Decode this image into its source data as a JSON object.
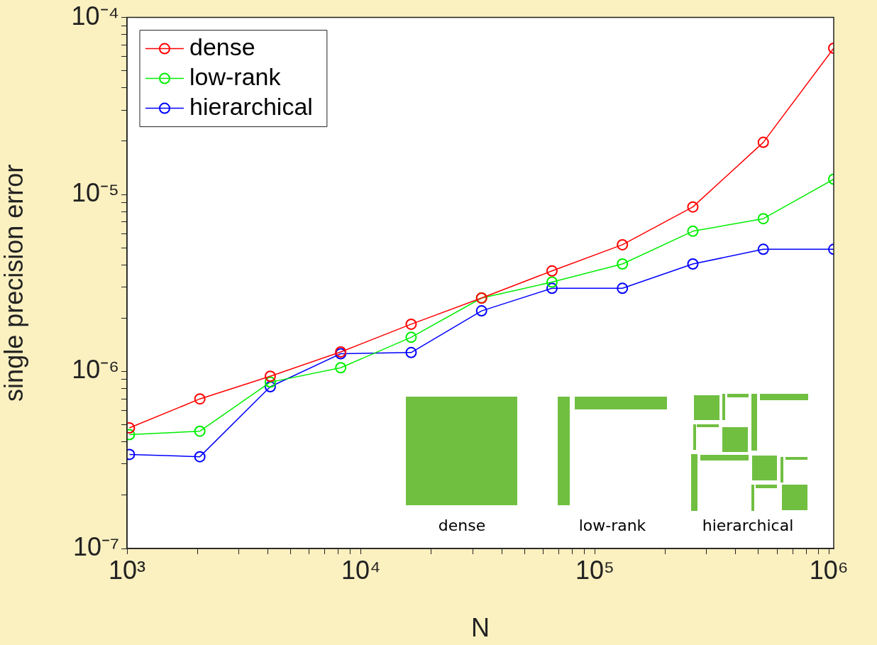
{
  "chart_data": {
    "type": "line",
    "xlabel": "N",
    "ylabel": "single precision error",
    "log": "xy",
    "marker": "circle",
    "legend": "top left",
    "grid": false,
    "x": [
      1024,
      2048,
      4096,
      8192,
      16384,
      32768,
      65536,
      131072,
      262144,
      524288,
      1048576
    ],
    "xlim": [
      1000,
      1048576
    ],
    "xticks": [
      {
        "value": 1000,
        "label": "10³"
      },
      {
        "value": 2000,
        "label": null
      },
      {
        "value": 3000,
        "label": null
      },
      {
        "value": 4000,
        "label": null
      },
      {
        "value": 5000,
        "label": null
      },
      {
        "value": 6000,
        "label": null
      },
      {
        "value": 7000,
        "label": null
      },
      {
        "value": 8000,
        "label": null
      },
      {
        "value": 9000,
        "label": null
      },
      {
        "value": 10000,
        "label": "10⁴"
      },
      {
        "value": 20000,
        "label": null
      },
      {
        "value": 30000,
        "label": null
      },
      {
        "value": 40000,
        "label": null
      },
      {
        "value": 50000,
        "label": null
      },
      {
        "value": 60000,
        "label": null
      },
      {
        "value": 70000,
        "label": null
      },
      {
        "value": 80000,
        "label": null
      },
      {
        "value": 90000,
        "label": null
      },
      {
        "value": 100000,
        "label": "10⁵"
      },
      {
        "value": 200000,
        "label": null
      },
      {
        "value": 300000,
        "label": null
      },
      {
        "value": 400000,
        "label": null
      },
      {
        "value": 500000,
        "label": null
      },
      {
        "value": 600000,
        "label": null
      },
      {
        "value": 700000,
        "label": null
      },
      {
        "value": 800000,
        "label": null
      },
      {
        "value": 900000,
        "label": null
      },
      {
        "value": 1000000,
        "label": "10⁶"
      }
    ],
    "ylim": [
      1e-07,
      0.0001
    ],
    "yticks": [
      {
        "value": 1e-07,
        "label": "10⁻⁷"
      },
      {
        "value": 2e-07,
        "label": null
      },
      {
        "value": 3e-07,
        "label": null
      },
      {
        "value": 4e-07,
        "label": null
      },
      {
        "value": 5e-07,
        "label": null
      },
      {
        "value": 6e-07,
        "label": null
      },
      {
        "value": 7e-07,
        "label": null
      },
      {
        "value": 8e-07,
        "label": null
      },
      {
        "value": 9e-07,
        "label": null
      },
      {
        "value": 1e-06,
        "label": "10⁻⁶"
      },
      {
        "value": 2e-06,
        "label": null
      },
      {
        "value": 3e-06,
        "label": null
      },
      {
        "value": 4e-06,
        "label": null
      },
      {
        "value": 5e-06,
        "label": null
      },
      {
        "value": 6e-06,
        "label": null
      },
      {
        "value": 7e-06,
        "label": null
      },
      {
        "value": 8e-06,
        "label": null
      },
      {
        "value": 9e-06,
        "label": null
      },
      {
        "value": 1e-05,
        "label": "10⁻⁵"
      },
      {
        "value": 2e-05,
        "label": null
      },
      {
        "value": 3e-05,
        "label": null
      },
      {
        "value": 4e-05,
        "label": null
      },
      {
        "value": 5e-05,
        "label": null
      },
      {
        "value": 6e-05,
        "label": null
      },
      {
        "value": 7e-05,
        "label": null
      },
      {
        "value": 8e-05,
        "label": null
      },
      {
        "value": 9e-05,
        "label": null
      },
      {
        "value": 0.0001,
        "label": "10⁻⁴"
      }
    ],
    "series": [
      {
        "name": "dense",
        "color": "#ff0000",
        "values": [
          4.8e-07,
          7e-07,
          9.4e-07,
          1.29e-06,
          1.85e-06,
          2.6e-06,
          3.7e-06,
          5.2e-06,
          8.5e-06,
          1.97e-05,
          6.7e-05
        ]
      },
      {
        "name": "low-rank",
        "color": "#00ee00",
        "values": [
          4.4e-07,
          4.6e-07,
          8.7e-07,
          1.05e-06,
          1.56e-06,
          2.6e-06,
          3.2e-06,
          4.05e-06,
          6.2e-06,
          7.3e-06,
          1.22e-05
        ]
      },
      {
        "name": "hierarchical",
        "color": "#0000ff",
        "values": [
          3.4e-07,
          3.3e-07,
          8.2e-07,
          1.26e-06,
          1.28e-06,
          2.2e-06,
          2.95e-06,
          2.95e-06,
          4.05e-06,
          4.9e-06,
          4.9e-06
        ]
      }
    ],
    "annotations": [
      "dense",
      "low-rank",
      "hierarchical"
    ]
  }
}
